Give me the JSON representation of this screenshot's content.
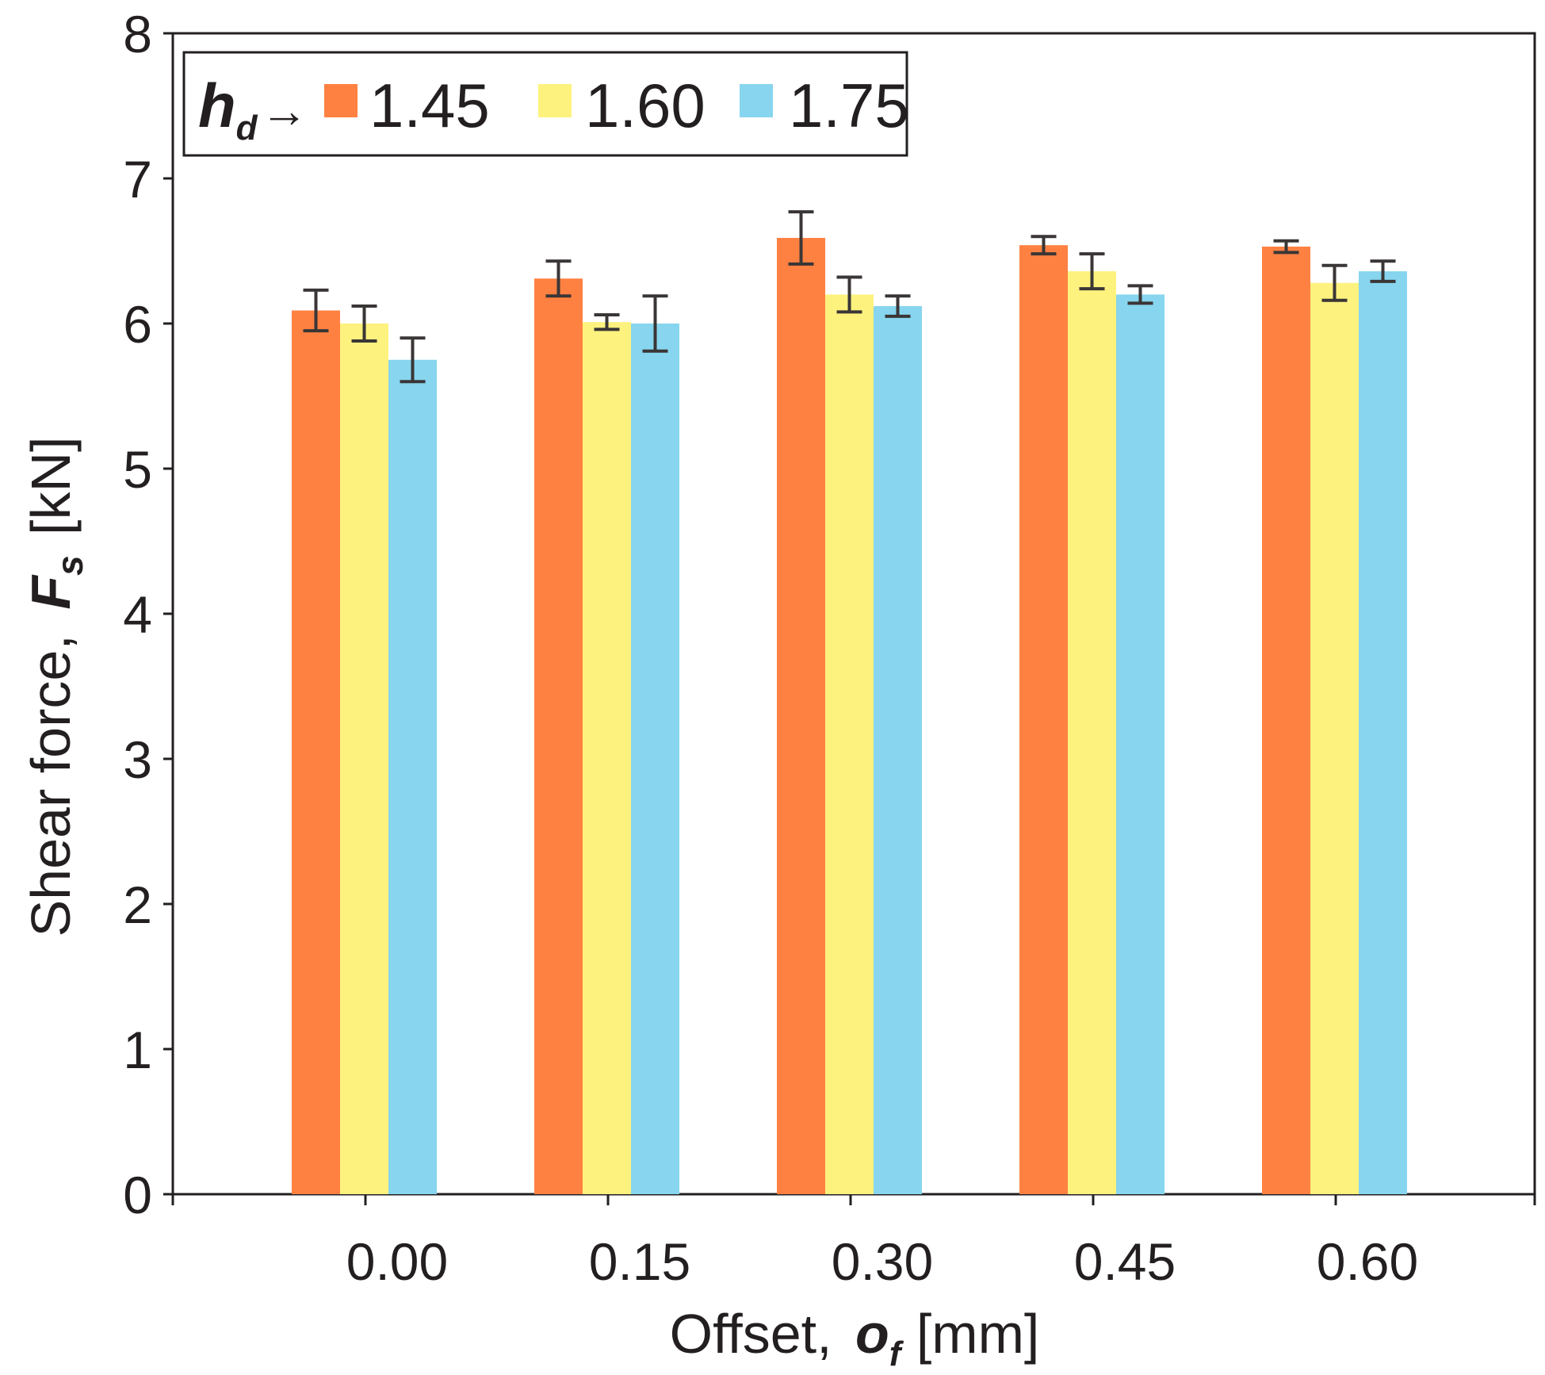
{
  "chart_data": {
    "type": "bar",
    "title": "",
    "xlabel_prefix": "Offset, ",
    "xlabel_symbol": "o",
    "xlabel_subscript": "f",
    "xlabel_unit": " [mm]",
    "ylabel_prefix": "Shear force, ",
    "ylabel_symbol": "F",
    "ylabel_subscript": "s",
    "ylabel_unit": " [kN]",
    "categories": [
      "0.00",
      "0.15",
      "0.30",
      "0.45",
      "0.60"
    ],
    "ylim": [
      0,
      8
    ],
    "yticks": [
      "0",
      "1",
      "2",
      "3",
      "4",
      "5",
      "6",
      "7",
      "8"
    ],
    "legend": {
      "symbol": "h",
      "subscript": "d",
      "arrow": "→",
      "placement": "top-left"
    },
    "series": [
      {
        "name": "1.45",
        "color": "#ff8142",
        "values": [
          6.09,
          6.31,
          6.59,
          6.54,
          6.53
        ],
        "errors": [
          0.14,
          0.12,
          0.18,
          0.06,
          0.04
        ]
      },
      {
        "name": "1.60",
        "color": "#fdf27e",
        "values": [
          6.0,
          6.01,
          6.2,
          6.36,
          6.28
        ],
        "errors": [
          0.12,
          0.05,
          0.12,
          0.12,
          0.12
        ]
      },
      {
        "name": "1.75",
        "color": "#87d5ee",
        "values": [
          5.75,
          6.0,
          6.12,
          6.2,
          6.36
        ],
        "errors": [
          0.15,
          0.19,
          0.07,
          0.06,
          0.07
        ]
      }
    ]
  }
}
